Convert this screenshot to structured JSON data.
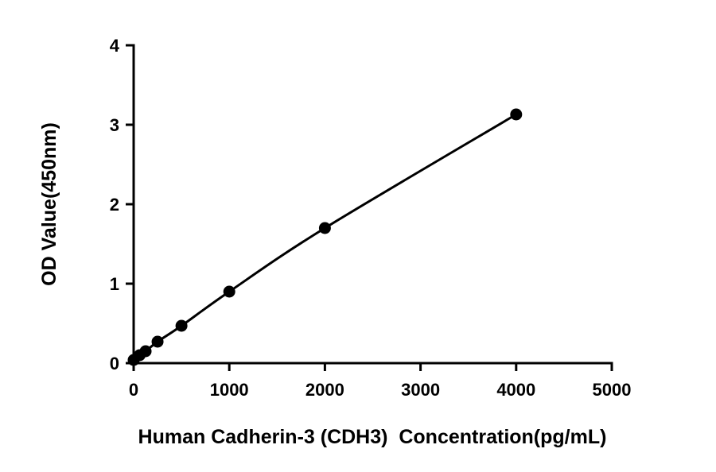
{
  "chart_data": {
    "type": "scatter",
    "title": "",
    "xlabel": "Human Cadherin-3 (CDH3)  Concentration(pg/mL)",
    "ylabel": "OD Value(450nm)",
    "xlim": [
      0,
      5000
    ],
    "ylim": [
      0,
      4
    ],
    "xticks": [
      0,
      1000,
      2000,
      3000,
      4000,
      5000
    ],
    "yticks": [
      0,
      1,
      2,
      3,
      4
    ],
    "grid": false,
    "fit_line": true,
    "color": "#000000",
    "x": [
      0,
      62.5,
      125,
      250,
      500,
      1000,
      2000,
      4000
    ],
    "y": [
      0.04,
      0.1,
      0.15,
      0.27,
      0.47,
      0.9,
      1.7,
      3.13
    ]
  }
}
